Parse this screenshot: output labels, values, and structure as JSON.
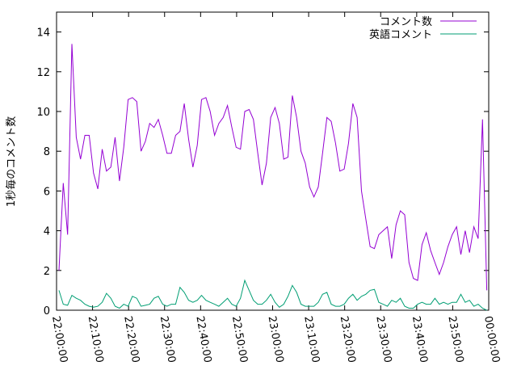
{
  "chart_data": {
    "type": "line",
    "y_label": "1秒毎のコメント数",
    "x": [
      "22:00:40",
      "22:01:52",
      "22:03:04",
      "22:04:16",
      "22:05:28",
      "22:06:40",
      "22:07:52",
      "22:09:04",
      "22:10:16",
      "22:11:28",
      "22:12:40",
      "22:13:52",
      "22:15:04",
      "22:16:16",
      "22:17:28",
      "22:18:40",
      "22:19:52",
      "22:21:04",
      "22:22:16",
      "22:23:28",
      "22:24:40",
      "22:25:52",
      "22:27:04",
      "22:28:16",
      "22:29:28",
      "22:30:40",
      "22:31:52",
      "22:33:04",
      "22:34:16",
      "22:35:28",
      "22:36:40",
      "22:37:52",
      "22:39:04",
      "22:40:16",
      "22:41:28",
      "22:42:40",
      "22:43:52",
      "22:45:04",
      "22:46:16",
      "22:47:28",
      "22:48:40",
      "22:49:52",
      "22:51:04",
      "22:52:16",
      "22:53:28",
      "22:54:40",
      "22:55:52",
      "22:57:04",
      "22:58:16",
      "22:59:28",
      "23:00:40",
      "23:01:52",
      "23:03:04",
      "23:04:16",
      "23:05:28",
      "23:06:40",
      "23:07:52",
      "23:09:04",
      "23:10:16",
      "23:11:28",
      "23:12:40",
      "23:13:52",
      "23:15:04",
      "23:16:16",
      "23:17:28",
      "23:18:40",
      "23:19:52",
      "23:21:04",
      "23:22:16",
      "23:23:28",
      "23:24:40",
      "23:25:52",
      "23:27:04",
      "23:28:16",
      "23:29:28",
      "23:30:40",
      "23:31:52",
      "23:33:04",
      "23:34:16",
      "23:35:28",
      "23:36:40",
      "23:37:52",
      "23:39:04",
      "23:40:16",
      "23:41:28",
      "23:42:40",
      "23:43:52",
      "23:45:04",
      "23:46:16",
      "23:47:28",
      "23:48:40",
      "23:49:52",
      "23:51:04",
      "23:52:16",
      "23:53:28",
      "23:54:40",
      "23:55:52",
      "23:57:04",
      "23:58:16",
      "23:59:28"
    ],
    "series": [
      {
        "name": "コメント数",
        "color": "#9400d3",
        "values": [
          2.0,
          6.4,
          3.8,
          13.4,
          8.7,
          7.6,
          8.8,
          8.8,
          6.9,
          6.1,
          8.1,
          7.0,
          7.2,
          8.7,
          6.5,
          8.2,
          10.6,
          10.7,
          10.5,
          8.0,
          8.5,
          9.4,
          9.2,
          9.6,
          8.8,
          7.9,
          7.9,
          8.8,
          9.0,
          10.4,
          8.6,
          7.2,
          8.3,
          10.6,
          10.7,
          10.0,
          8.8,
          9.4,
          9.7,
          10.3,
          9.2,
          8.2,
          8.1,
          10.0,
          10.1,
          9.6,
          7.9,
          6.3,
          7.4,
          9.7,
          10.2,
          9.4,
          7.6,
          7.7,
          10.8,
          9.7,
          8.0,
          7.4,
          6.2,
          5.7,
          6.2,
          7.9,
          9.7,
          9.5,
          8.4,
          7.0,
          7.1,
          8.4,
          10.4,
          9.7,
          6.0,
          4.6,
          3.2,
          3.1,
          3.8,
          4.0,
          4.2,
          2.6,
          4.3,
          5.0,
          4.8,
          2.4,
          1.6,
          1.5,
          3.3,
          3.9,
          3.0,
          2.4,
          1.8,
          2.4,
          3.2,
          3.8,
          4.2,
          2.8,
          4.0,
          2.9,
          4.2,
          3.6,
          9.6,
          1.0
        ]
      },
      {
        "name": "英語コメント",
        "color": "#009e73",
        "values": [
          1.0,
          0.3,
          0.25,
          0.75,
          0.6,
          0.5,
          0.3,
          0.2,
          0.15,
          0.2,
          0.4,
          0.85,
          0.6,
          0.2,
          0.1,
          0.3,
          0.2,
          0.7,
          0.6,
          0.2,
          0.25,
          0.3,
          0.6,
          0.7,
          0.3,
          0.2,
          0.3,
          0.3,
          1.15,
          0.9,
          0.5,
          0.4,
          0.5,
          0.75,
          0.5,
          0.4,
          0.3,
          0.2,
          0.4,
          0.6,
          0.3,
          0.2,
          0.6,
          1.5,
          1.0,
          0.5,
          0.3,
          0.3,
          0.5,
          0.8,
          0.4,
          0.15,
          0.3,
          0.7,
          1.25,
          0.9,
          0.3,
          0.2,
          0.2,
          0.2,
          0.4,
          0.8,
          0.9,
          0.3,
          0.2,
          0.2,
          0.3,
          0.6,
          0.8,
          0.5,
          0.7,
          0.8,
          1.0,
          1.05,
          0.4,
          0.3,
          0.2,
          0.5,
          0.4,
          0.6,
          0.2,
          0.1,
          0.1,
          0.3,
          0.4,
          0.3,
          0.3,
          0.6,
          0.3,
          0.4,
          0.3,
          0.4,
          0.4,
          0.8,
          0.4,
          0.5,
          0.2,
          0.3,
          0.1,
          0.0
        ]
      }
    ],
    "xlim": [
      "22:00:00",
      "00:00:00"
    ],
    "xticks": [
      "22:00:00",
      "22:10:00",
      "22:20:00",
      "22:30:00",
      "22:40:00",
      "22:50:00",
      "23:00:00",
      "23:10:00",
      "23:20:00",
      "23:30:00",
      "23:40:00",
      "23:50:00",
      "00:00:00"
    ],
    "ylim": [
      0,
      15
    ],
    "yticks": [
      0,
      2,
      4,
      6,
      8,
      10,
      12,
      14
    ],
    "legend": "upper right"
  }
}
